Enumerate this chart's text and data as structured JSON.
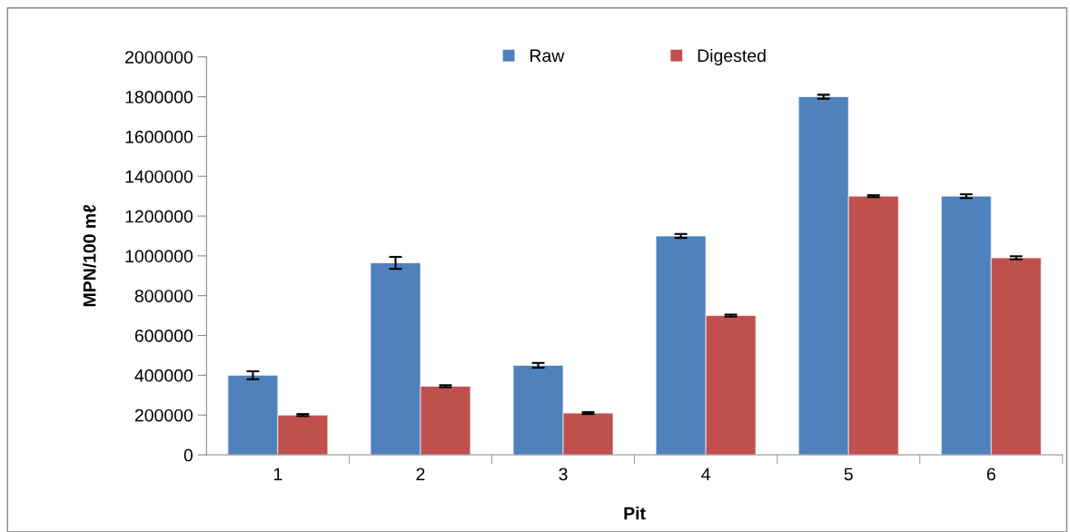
{
  "chart_data": {
    "type": "bar",
    "xlabel": "Pit",
    "ylabel": "MPN/100 mℓ",
    "categories": [
      "1",
      "2",
      "3",
      "4",
      "5",
      "6"
    ],
    "series": [
      {
        "name": "Raw",
        "color": "#4f81bd",
        "values": [
          400000,
          965000,
          450000,
          1100000,
          1800000,
          1300000
        ],
        "errors": [
          20000,
          30000,
          12000,
          10000,
          10000,
          10000
        ]
      },
      {
        "name": "Digested",
        "color": "#c0504d",
        "values": [
          200000,
          345000,
          210000,
          700000,
          1300000,
          990000
        ],
        "errors": [
          5000,
          5000,
          5000,
          5000,
          5000,
          8000
        ]
      }
    ],
    "ylim": [
      0,
      2000000
    ],
    "yticks": [
      0,
      200000,
      400000,
      600000,
      800000,
      1000000,
      1200000,
      1400000,
      1600000,
      1800000,
      2000000
    ],
    "grid": false,
    "legend": "top"
  }
}
